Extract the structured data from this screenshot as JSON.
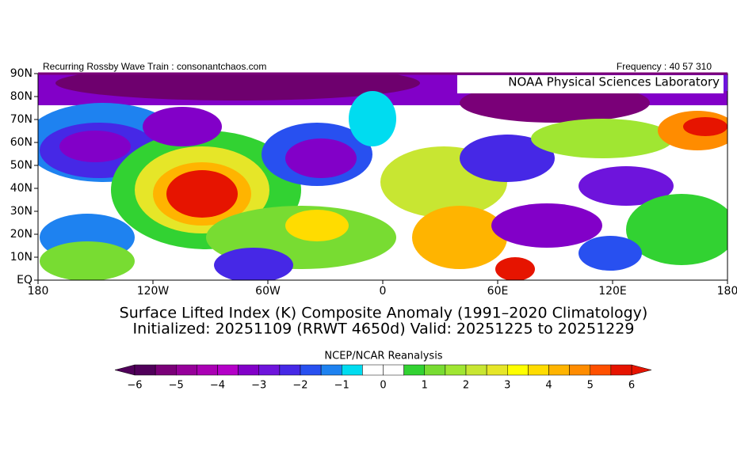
{
  "header": {
    "left": "Recurring Rossby Wave Train : consonantchaos.com",
    "right": "Frequency : 40 57 310",
    "badge": "NOAA Physical Sciences Laboratory"
  },
  "map": {
    "lat_labels": [
      "90N",
      "80N",
      "70N",
      "60N",
      "50N",
      "40N",
      "30N",
      "20N",
      "10N",
      "EQ"
    ],
    "lon_labels": [
      "180",
      "120W",
      "60W",
      "0",
      "60E",
      "120E",
      "180"
    ]
  },
  "caption": {
    "line1": "Surface Lifted Index (K) Composite Anomaly (1991–2020 Climatology)",
    "line2": "Initialized: 20251109 (RRWT 4650d) Valid: 20251225 to 20251229"
  },
  "colorbar": {
    "title": "NCEP/NCAR Reanalysis",
    "colors": [
      "#50005a",
      "#7a0078",
      "#96009a",
      "#aa00b4",
      "#b400c8",
      "#8200c8",
      "#6e14dc",
      "#4628e6",
      "#2850f0",
      "#1e82f0",
      "#00dcf0",
      "#ffffff",
      "#ffffff",
      "#32d232",
      "#78dc32",
      "#a0e632",
      "#c8e632",
      "#e6e628",
      "#ffff00",
      "#ffdc00",
      "#ffb400",
      "#ff8c00",
      "#ff5000",
      "#e61400"
    ],
    "ticks": [
      "−6",
      "−5",
      "−4",
      "−3",
      "−2",
      "−1",
      "0",
      "1",
      "2",
      "3",
      "4",
      "5",
      "6"
    ]
  }
}
